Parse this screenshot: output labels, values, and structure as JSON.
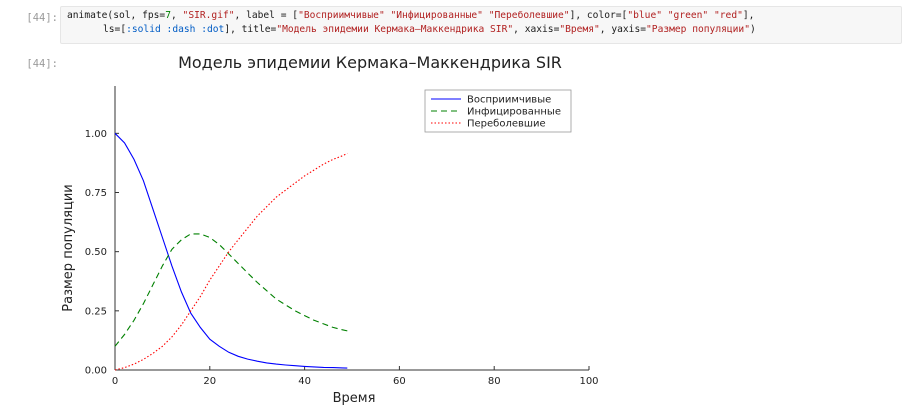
{
  "cell": {
    "input_prompt": "[44]:",
    "output_prompt": "[44]:",
    "code": {
      "line1": {
        "p1": "animate(sol, fps=",
        "fps": "7",
        "p2": ", ",
        "gif": "\"SIR.gif\"",
        "p3": ", label = [",
        "l1": "\"Восприимчивые\"",
        "p4": " ",
        "l2": "\"Инфицированные\"",
        "p5": " ",
        "l3": "\"Переболевшие\"",
        "p6": "], color=[",
        "c1": "\"blue\"",
        "p7": " ",
        "c2": "\"green\"",
        "p8": " ",
        "c3": "\"red\"",
        "p9": "],"
      },
      "line2": {
        "p1": "ls=[",
        "s1": ":solid",
        "p2": " ",
        "s2": ":dash",
        "p3": " ",
        "s3": ":dot",
        "p4": "], title=",
        "title": "\"Модель эпидемии Кермака–Маккендрика SIR\"",
        "p5": ", xaxis=",
        "xaxis": "\"Время\"",
        "p6": ", yaxis=",
        "yaxis": "\"Размер популяции\"",
        "p7": ")"
      }
    }
  },
  "chart_data": {
    "type": "line",
    "title": "Модель эпидемии Кермака–Маккендрика SIR",
    "xlabel": "Время",
    "ylabel": "Размер популяции",
    "xlim": [
      0,
      100
    ],
    "ylim": [
      0,
      1.2
    ],
    "xticks": [
      0,
      20,
      40,
      60,
      80,
      100
    ],
    "yticks": [
      0.0,
      0.25,
      0.5,
      0.75,
      1.0
    ],
    "xtick_labels": [
      "0",
      "20",
      "40",
      "60",
      "80",
      "100"
    ],
    "ytick_labels": [
      "0.00",
      "0.25",
      "0.50",
      "0.75",
      "1.00"
    ],
    "grid": false,
    "legend_position": "top-right",
    "series": [
      {
        "name": "Восприимчивые",
        "color": "#0000ff",
        "dash": "solid",
        "x": [
          0,
          2,
          4,
          6,
          8,
          10,
          12,
          14,
          16,
          18,
          20,
          22,
          24,
          26,
          28,
          30,
          32,
          34,
          36,
          38,
          40,
          42,
          44,
          46,
          48,
          49
        ],
        "y": [
          1.0,
          0.96,
          0.89,
          0.8,
          0.68,
          0.56,
          0.44,
          0.33,
          0.24,
          0.18,
          0.13,
          0.1,
          0.075,
          0.058,
          0.046,
          0.037,
          0.03,
          0.025,
          0.021,
          0.018,
          0.015,
          0.013,
          0.011,
          0.01,
          0.009,
          0.008
        ]
      },
      {
        "name": "Инфицированные",
        "color": "#008000",
        "dash": "dash",
        "x": [
          0,
          2,
          4,
          6,
          8,
          10,
          12,
          14,
          16,
          18,
          20,
          22,
          24,
          26,
          28,
          30,
          32,
          34,
          36,
          38,
          40,
          42,
          44,
          46,
          48,
          49
        ],
        "y": [
          0.1,
          0.15,
          0.21,
          0.28,
          0.36,
          0.44,
          0.51,
          0.55,
          0.575,
          0.575,
          0.56,
          0.53,
          0.49,
          0.45,
          0.41,
          0.37,
          0.335,
          0.3,
          0.275,
          0.25,
          0.23,
          0.21,
          0.195,
          0.18,
          0.17,
          0.165
        ]
      },
      {
        "name": "Переболевшие",
        "color": "#ff0000",
        "dash": "dot",
        "x": [
          0,
          2,
          4,
          6,
          8,
          10,
          12,
          14,
          16,
          18,
          20,
          22,
          24,
          26,
          28,
          30,
          32,
          34,
          36,
          38,
          40,
          42,
          44,
          46,
          48,
          49
        ],
        "y": [
          0.0,
          0.01,
          0.025,
          0.045,
          0.07,
          0.1,
          0.14,
          0.19,
          0.25,
          0.31,
          0.38,
          0.44,
          0.5,
          0.55,
          0.6,
          0.65,
          0.69,
          0.73,
          0.76,
          0.79,
          0.82,
          0.845,
          0.87,
          0.89,
          0.905,
          0.915
        ]
      }
    ]
  }
}
